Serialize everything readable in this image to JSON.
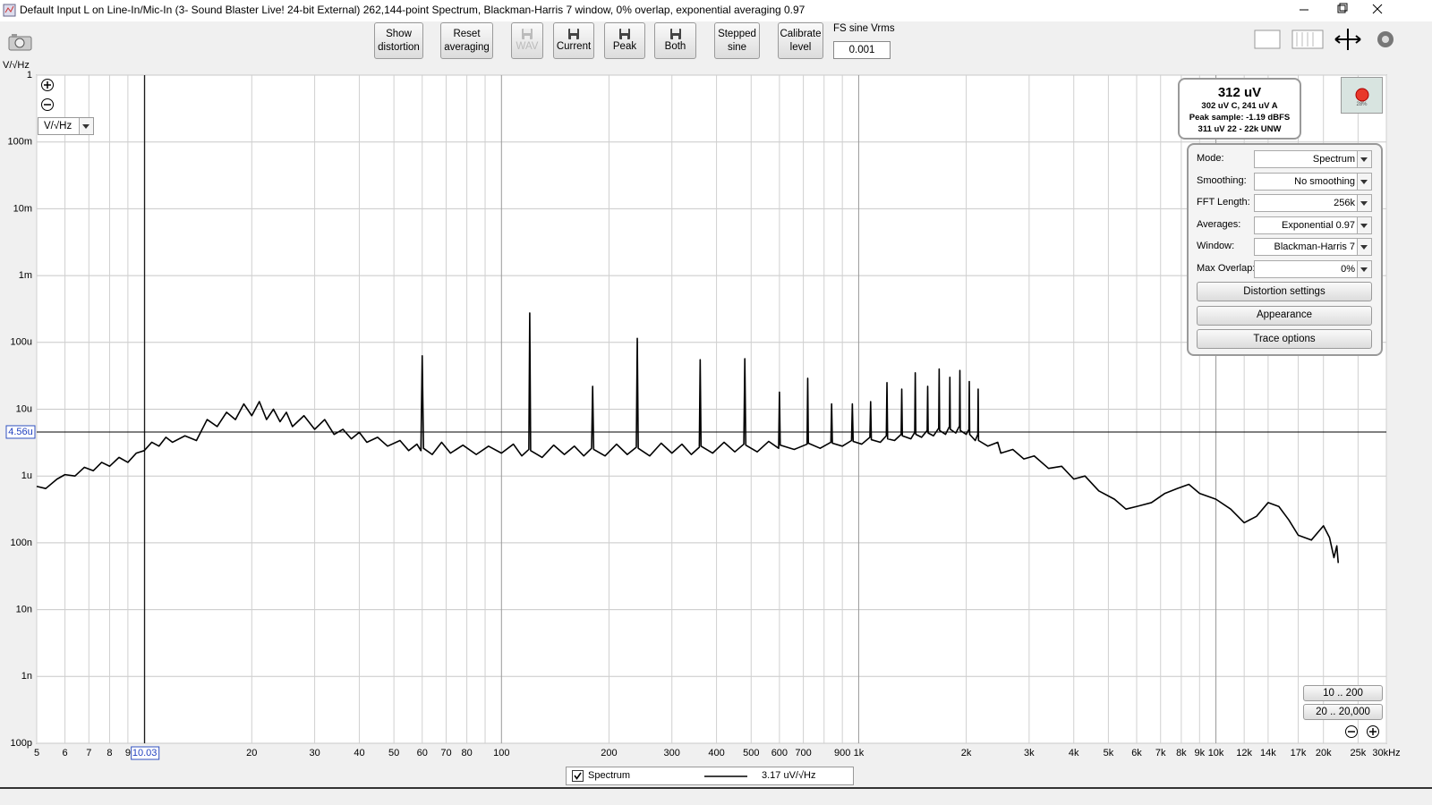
{
  "window": {
    "title": "Default Input L on Line-In/Mic-In (3- Sound Blaster Live! 24-bit External) 262,144-point Spectrum, Blackman-Harris 7 window, 0% overlap, exponential averaging 0.97"
  },
  "toolbar": {
    "buttons": [
      {
        "label": [
          "Show",
          "distortion"
        ]
      },
      {
        "label": [
          "Reset",
          "averaging"
        ]
      },
      {
        "label": [
          "WAV"
        ],
        "disabled": true
      },
      {
        "label": [
          "Current"
        ]
      },
      {
        "label": [
          "Peak"
        ]
      },
      {
        "label": [
          "Both"
        ]
      },
      {
        "label": [
          "Stepped",
          "sine"
        ]
      },
      {
        "label": [
          "Calibrate",
          "level"
        ]
      }
    ],
    "fs_label": "FS sine Vrms",
    "fs_value": "0.001"
  },
  "unit_selector": "V/√Hz",
  "readout": {
    "main": "312 uV",
    "lines": [
      "302 uV C, 241 uV A",
      "Peak sample: -1.19 dBFS",
      "311 uV 22 - 22k UNW"
    ]
  },
  "record_level": "28%",
  "settings": {
    "rows": [
      {
        "label": "Mode:",
        "value": "Spectrum"
      },
      {
        "label": "Smoothing:",
        "value": "No  smoothing"
      },
      {
        "label": "FFT Length:",
        "value": "256k"
      },
      {
        "label": "Averages:",
        "value": "Exponential 0.97"
      },
      {
        "label": "Window:",
        "value": "Blackman-Harris 7"
      },
      {
        "label": "Max Overlap:",
        "value": "0%"
      }
    ],
    "buttons": [
      "Distortion settings",
      "Appearance",
      "Trace options"
    ]
  },
  "range_buttons": [
    "10 .. 200",
    "20 .. 20,000"
  ],
  "chart_data": {
    "type": "line",
    "y_label": "V/√Hz",
    "xscale": "log",
    "yscale": "log",
    "grid": true,
    "xlim": [
      5,
      30000
    ],
    "ylim": [
      1e-10,
      1
    ],
    "xticks": [
      5,
      6,
      7,
      8,
      9,
      20,
      30,
      40,
      50,
      60,
      70,
      80,
      100,
      200,
      300,
      400,
      500,
      600,
      700,
      900,
      {
        "value": 1000,
        "label": "1k"
      },
      {
        "value": 2000,
        "label": "2k"
      },
      {
        "value": 3000,
        "label": "3k"
      },
      {
        "value": 4000,
        "label": "4k"
      },
      {
        "value": 5000,
        "label": "5k"
      },
      {
        "value": 6000,
        "label": "6k"
      },
      {
        "value": 7000,
        "label": "7k"
      },
      {
        "value": 8000,
        "label": "8k"
      },
      {
        "value": 9000,
        "label": "9k"
      },
      {
        "value": 10000,
        "label": "10k"
      },
      {
        "value": 12000,
        "label": "12k"
      },
      {
        "value": 14000,
        "label": "14k"
      },
      {
        "value": 17000,
        "label": "17k"
      },
      {
        "value": 20000,
        "label": "20k"
      },
      {
        "value": 25000,
        "label": "25k"
      },
      {
        "value": 30000,
        "label": "30kHz"
      }
    ],
    "xgrid_extra": [
      10,
      90,
      800
    ],
    "yticks": [
      1,
      {
        "value": 0.1,
        "label": "100m"
      },
      {
        "value": 0.01,
        "label": "10m"
      },
      {
        "value": 0.001,
        "label": "1m"
      },
      {
        "value": 0.0001,
        "label": "100u"
      },
      {
        "value": 1e-05,
        "label": "10u"
      },
      {
        "value": 1e-06,
        "label": "1u"
      },
      {
        "value": 1e-07,
        "label": "100n"
      },
      {
        "value": 1e-08,
        "label": "10n"
      },
      {
        "value": 1e-09,
        "label": "1n"
      },
      {
        "value": 1e-10,
        "label": "100p"
      }
    ],
    "cursor": {
      "x": {
        "value": 10.03,
        "label": "10.03"
      },
      "y": {
        "value": 4.56e-06,
        "label": "4.56u"
      }
    },
    "legend_value": "3.17 uV/√Hz",
    "x": [
      5,
      5.3,
      5.7,
      6,
      6.4,
      6.8,
      7.2,
      7.6,
      8,
      8.5,
      9,
      9.5,
      10,
      10.5,
      11,
      11.5,
      12,
      13,
      14,
      15,
      16,
      17,
      18,
      19,
      20,
      21,
      22,
      23,
      24,
      25,
      26,
      28,
      30,
      32,
      34,
      36,
      38,
      40,
      42,
      45,
      48,
      52,
      55,
      58,
      59.5,
      60,
      60.5,
      64,
      68,
      72,
      78,
      85,
      92,
      100,
      108,
      114,
      119.3,
      120,
      120.7,
      130,
      140,
      150,
      160,
      170,
      178.8,
      180,
      181.2,
      195,
      210,
      225,
      238.5,
      240,
      241.5,
      260,
      280,
      300,
      320,
      340,
      358,
      360,
      362,
      390,
      420,
      450,
      477,
      480,
      483,
      520,
      560,
      597,
      600,
      603,
      660,
      717,
      720,
      723,
      780,
      836,
      840,
      844,
      900,
      955,
      960,
      965,
      1020,
      1075,
      1080,
      1085,
      1150,
      1195,
      1200,
      1205,
      1260,
      1315,
      1320,
      1325,
      1400,
      1435,
      1440,
      1445,
      1500,
      1555,
      1560,
      1565,
      1620,
      1675,
      1680,
      1685,
      1750,
      1795,
      1800,
      1805,
      1870,
      1915,
      1920,
      1925,
      2000,
      2035,
      2040,
      2045,
      2120,
      2155,
      2160,
      2165,
      2300,
      2450,
      2500,
      2700,
      2900,
      3100,
      3400,
      3700,
      4000,
      4300,
      4700,
      5200,
      5600,
      6000,
      6600,
      7200,
      7800,
      8400,
      9000,
      10000,
      11000,
      12000,
      13000,
      14000,
      15000,
      16000,
      17000,
      18500,
      20000,
      20800,
      21400,
      21800,
      22000
    ],
    "series": [
      {
        "name": "Spectrum",
        "color": "#000000",
        "values": [
          7e-07,
          6.5e-07,
          9e-07,
          1.05e-06,
          1e-06,
          1.35e-06,
          1.2e-06,
          1.6e-06,
          1.4e-06,
          1.9e-06,
          1.6e-06,
          2.2e-06,
          2.4e-06,
          3.2e-06,
          2.8e-06,
          3.8e-06,
          3.2e-06,
          4e-06,
          3.4e-06,
          7e-06,
          5.5e-06,
          9e-06,
          7e-06,
          1.2e-05,
          8e-06,
          1.3e-05,
          7e-06,
          1e-05,
          6.5e-06,
          9e-06,
          5.5e-06,
          8e-06,
          5e-06,
          7e-06,
          4.2e-06,
          5e-06,
          3.6e-06,
          4.5e-06,
          3.2e-06,
          3.8e-06,
          2.8e-06,
          3.4e-06,
          2.4e-06,
          3e-06,
          2.4e-06,
          6.3e-05,
          2.6e-06,
          2.1e-06,
          3.2e-06,
          2.2e-06,
          2.9e-06,
          2.1e-06,
          2.8e-06,
          2.2e-06,
          3e-06,
          2e-06,
          2.5e-06,
          0.000275,
          2.4e-06,
          1.9e-06,
          2.9e-06,
          2.1e-06,
          2.8e-06,
          2e-06,
          2.6e-06,
          2.2e-05,
          2.5e-06,
          2e-06,
          3e-06,
          2.1e-06,
          2.7e-06,
          0.000115,
          2.6e-06,
          2e-06,
          3.1e-06,
          2.2e-06,
          3e-06,
          2.1e-06,
          2.7e-06,
          5.5e-05,
          2.8e-06,
          2.2e-06,
          3.2e-06,
          2.3e-06,
          3e-06,
          5.7e-05,
          2.9e-06,
          2.3e-06,
          3.3e-06,
          2.6e-06,
          1.8e-05,
          2.9e-06,
          2.5e-06,
          3e-06,
          2.9e-05,
          3.1e-06,
          2.6e-06,
          3.2e-06,
          1.2e-05,
          3.1e-06,
          2.8e-06,
          3.4e-06,
          1.2e-05,
          3.3e-06,
          3e-06,
          3.8e-06,
          1.3e-05,
          3.5e-06,
          3.2e-06,
          4e-06,
          2.5e-05,
          3.6e-06,
          3.4e-06,
          4.2e-06,
          2e-05,
          4e-06,
          3.6e-06,
          4.5e-06,
          3.5e-05,
          4.2e-06,
          3.8e-06,
          4.8e-06,
          2.2e-05,
          4.4e-06,
          4e-06,
          5.2e-06,
          4e-05,
          4.8e-06,
          4.2e-06,
          5.5e-06,
          3e-05,
          5e-06,
          4.4e-06,
          5.6e-06,
          3.8e-05,
          4.8e-06,
          4.2e-06,
          5e-06,
          2.6e-05,
          4.2e-06,
          3.4e-06,
          4.2e-06,
          2e-05,
          3.4e-06,
          2.8e-06,
          3.2e-06,
          2.2e-06,
          2.5e-06,
          1.8e-06,
          2e-06,
          1.3e-06,
          1.4e-06,
          9e-07,
          1e-06,
          6e-07,
          4.5e-07,
          3.2e-07,
          3.5e-07,
          4e-07,
          5.5e-07,
          6.5e-07,
          7.5e-07,
          5.5e-07,
          4.5e-07,
          3.2e-07,
          2e-07,
          2.5e-07,
          4e-07,
          3.5e-07,
          2.2e-07,
          1.3e-07,
          1.1e-07,
          1.8e-07,
          1.2e-07,
          6e-08,
          9e-08,
          5e-08
        ]
      }
    ]
  }
}
